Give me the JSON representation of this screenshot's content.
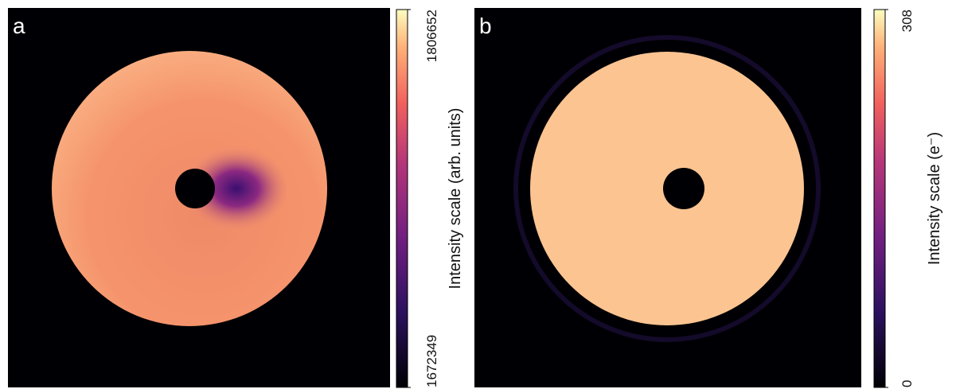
{
  "chart_data": [
    {
      "type": "image",
      "panel_label": "a",
      "colorbar_label": "Intensity scale (arb. units)",
      "clim": [
        1672349,
        1806652
      ],
      "cticks": [
        1672349,
        1806652
      ]
    },
    {
      "type": "image",
      "panel_label": "b",
      "colorbar_label": "Intensity scale (e⁻)",
      "clim": [
        0,
        308
      ],
      "cticks": [
        0,
        308
      ]
    }
  ]
}
